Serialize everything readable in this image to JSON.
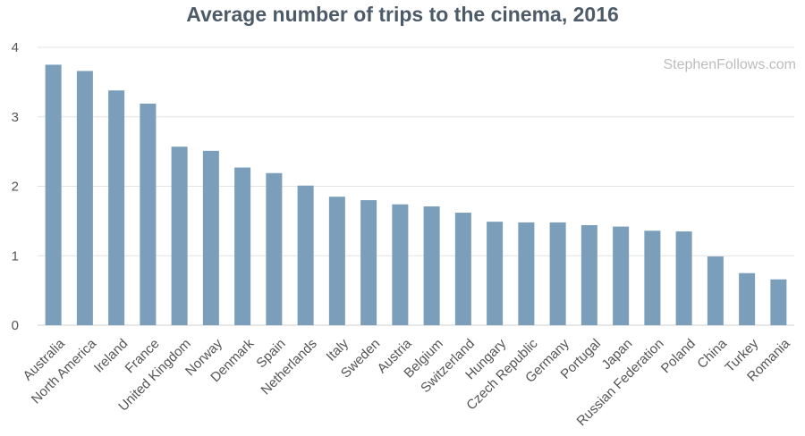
{
  "watermark": "StephenFollows.com",
  "chart_data": {
    "type": "bar",
    "title": "Average number of trips to the cinema, 2016",
    "xlabel": "",
    "ylabel": "",
    "categories": [
      "Australia",
      "North America",
      "Ireland",
      "France",
      "United Kingdom",
      "Norway",
      "Denmark",
      "Spain",
      "Netherlands",
      "Italy",
      "Sweden",
      "Austria",
      "Belgium",
      "Switzerland",
      "Hungary",
      "Czech Republic",
      "Germany",
      "Portugal",
      "Japan",
      "Russian Federation",
      "Poland",
      "China",
      "Turkey",
      "Romania"
    ],
    "values": [
      3.75,
      3.66,
      3.38,
      3.19,
      2.57,
      2.51,
      2.27,
      2.19,
      2.01,
      1.85,
      1.8,
      1.74,
      1.71,
      1.62,
      1.49,
      1.48,
      1.48,
      1.44,
      1.42,
      1.36,
      1.35,
      0.99,
      0.75,
      0.66
    ],
    "ylim": [
      0,
      4
    ],
    "yticks": [
      0,
      1,
      2,
      3,
      4
    ],
    "grid": true,
    "bar_color": "#7b9ebb",
    "grid_color": "#e3e3e3"
  }
}
